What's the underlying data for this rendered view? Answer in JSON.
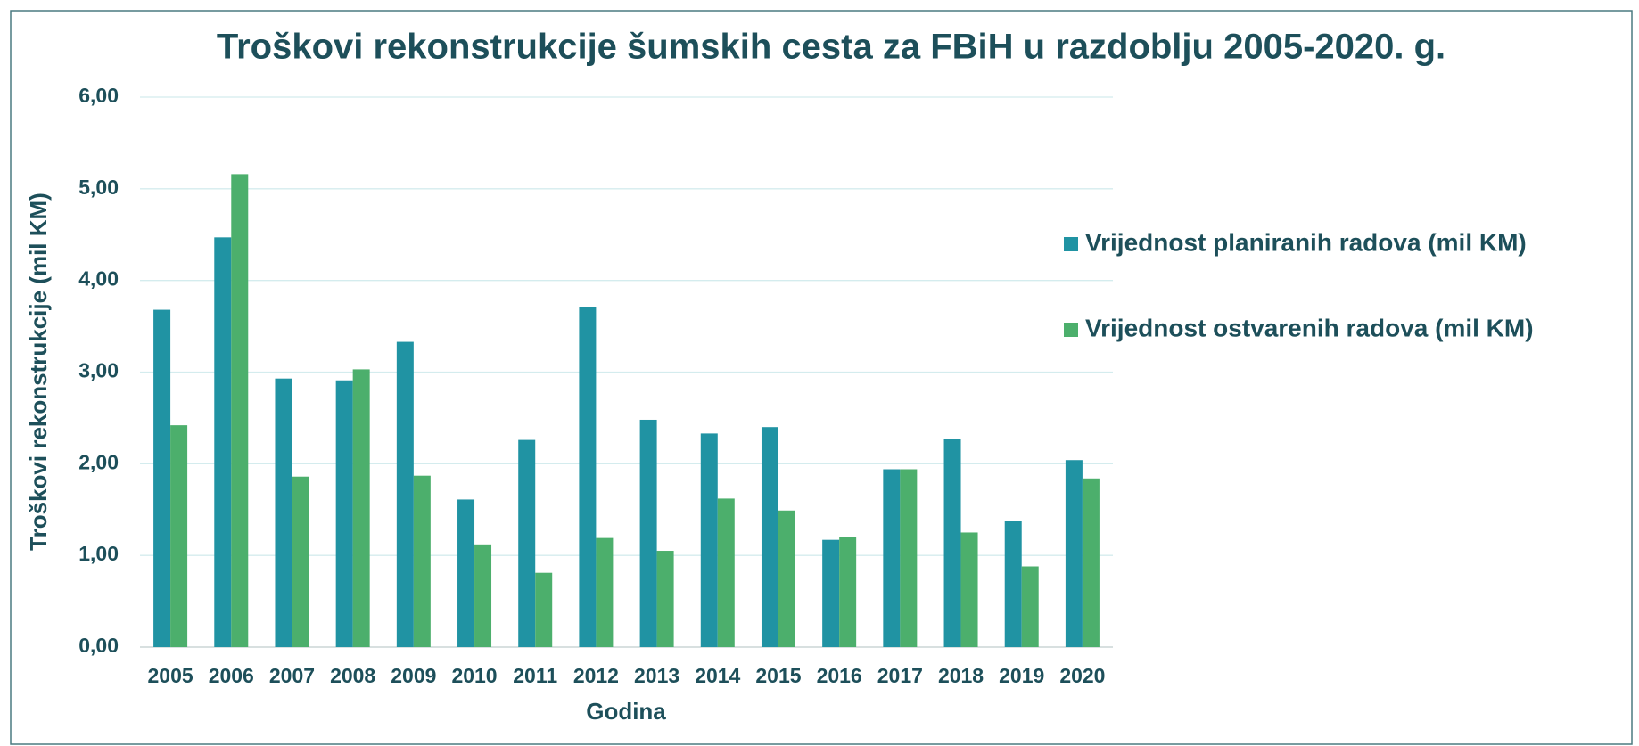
{
  "chart_data": {
    "type": "bar",
    "title": "Troškovi rekonstrukcije šumskih cesta za FBiH u razdoblju 2005-2020. g.",
    "xlabel": "Godina",
    "ylabel": "Troškovi rekonstrukcije (mil KM)",
    "categories": [
      "2005",
      "2006",
      "2007",
      "2008",
      "2009",
      "2010",
      "2011",
      "2012",
      "2013",
      "2014",
      "2015",
      "2016",
      "2017",
      "2018",
      "2019",
      "2020"
    ],
    "series": [
      {
        "name": "Vrijednost planiranih radova (mil KM)",
        "color": "#2093a3",
        "values": [
          3.68,
          4.47,
          2.93,
          2.91,
          3.33,
          1.61,
          2.26,
          3.71,
          2.48,
          2.33,
          2.4,
          1.17,
          1.94,
          2.27,
          1.38,
          2.04
        ]
      },
      {
        "name": "Vrijednost ostvarenih radova (mil KM)",
        "color": "#4caf6c",
        "values": [
          2.42,
          5.16,
          1.86,
          3.03,
          1.87,
          1.12,
          0.81,
          1.19,
          1.05,
          1.62,
          1.49,
          1.2,
          1.94,
          1.25,
          0.88,
          1.84
        ]
      }
    ],
    "ylim": [
      0,
      6
    ],
    "yticks": [
      {
        "value": 0,
        "label": "0,00"
      },
      {
        "value": 1,
        "label": "1,00"
      },
      {
        "value": 2,
        "label": "2,00"
      },
      {
        "value": 3,
        "label": "3,00"
      },
      {
        "value": 4,
        "label": "4,00"
      },
      {
        "value": 5,
        "label": "5,00"
      },
      {
        "value": 6,
        "label": "6,00"
      }
    ],
    "grid": true,
    "legend": "right"
  }
}
